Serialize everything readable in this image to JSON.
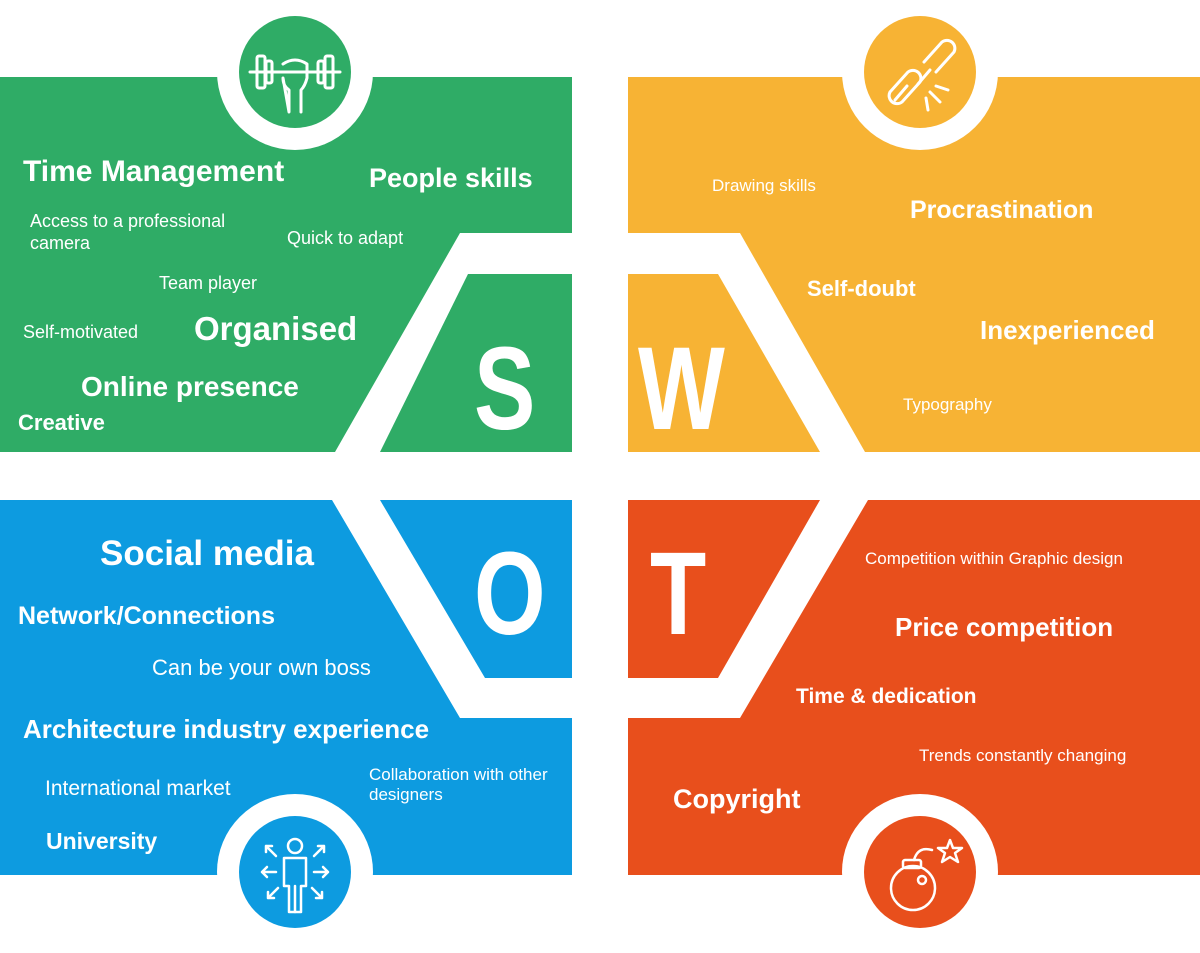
{
  "colors": {
    "strengths": "#2fac66",
    "weaknesses": "#f7b334",
    "opportunities": "#0d9be0",
    "threats": "#e84f1c",
    "background": "#ffffff"
  },
  "quadrants": {
    "strengths": {
      "letter": "S",
      "icon": "dumbbell-icon",
      "items": [
        "Time Management",
        "People skills",
        "Access to a professional camera",
        "Quick to adapt",
        "Team player",
        "Self-motivated",
        "Organised",
        "Online presence",
        "Creative"
      ]
    },
    "weaknesses": {
      "letter": "W",
      "icon": "broken-chain-icon",
      "items": [
        "Drawing skills",
        "Procrastination",
        "Self-doubt",
        "Inexperienced",
        "Typography"
      ]
    },
    "opportunities": {
      "letter": "O",
      "icon": "person-arrows-icon",
      "items": [
        "Social media",
        "Network/Connections",
        "Can be your own boss",
        "Architecture industry experience",
        "International market",
        "Collaboration with other designers",
        "University"
      ]
    },
    "threats": {
      "letter": "T",
      "icon": "bomb-icon",
      "items": [
        "Competition within Graphic design",
        "Price competition",
        "Time & dedication",
        "Trends constantly changing",
        "Copyright"
      ]
    }
  }
}
